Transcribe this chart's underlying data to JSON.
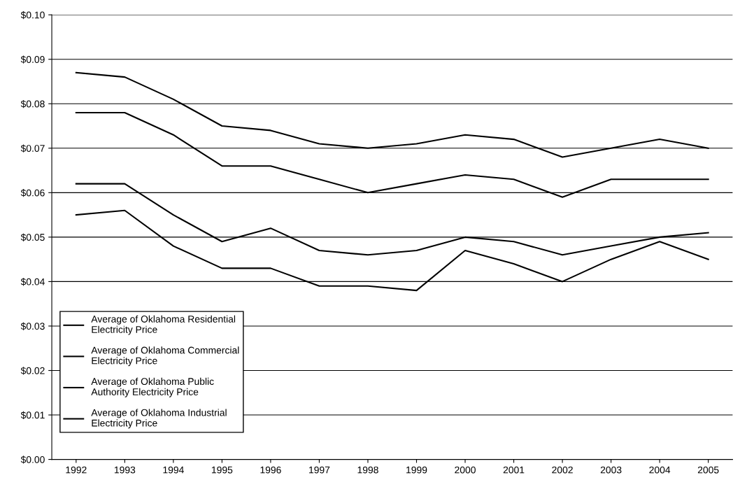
{
  "chart_data": {
    "type": "line",
    "categories": [
      "1992",
      "1993",
      "1994",
      "1995",
      "1996",
      "1997",
      "1998",
      "1999",
      "2000",
      "2001",
      "2002",
      "2003",
      "2004",
      "2005"
    ],
    "series": [
      {
        "name": "Average of Oklahoma Residential\nElectricity Price",
        "color": "#000000",
        "values": [
          0.087,
          0.086,
          0.081,
          0.075,
          0.074,
          0.071,
          0.07,
          0.071,
          0.073,
          0.072,
          0.068,
          0.07,
          0.072,
          0.07
        ]
      },
      {
        "name": "Average of Oklahoma Commercial\nElectricity Price",
        "color": "#000000",
        "values": [
          0.078,
          0.078,
          0.073,
          0.066,
          0.066,
          0.063,
          0.06,
          0.062,
          0.064,
          0.063,
          0.059,
          0.063,
          0.063,
          0.063
        ]
      },
      {
        "name": "Average of Oklahoma Public\nAuthority Electricity Price",
        "color": "#000000",
        "values": [
          0.062,
          0.062,
          0.055,
          0.049,
          0.052,
          0.047,
          0.046,
          0.047,
          0.05,
          0.049,
          0.046,
          0.048,
          0.05,
          0.051
        ]
      },
      {
        "name": "Average of Oklahoma Industrial\nElectricity Price",
        "color": "#000000",
        "values": [
          0.055,
          0.056,
          0.048,
          0.043,
          0.043,
          0.039,
          0.039,
          0.038,
          0.047,
          0.044,
          0.04,
          0.045,
          0.049,
          0.045
        ]
      }
    ],
    "ylim": [
      0,
      0.1
    ],
    "yticks": [
      {
        "value": 0,
        "label": "$0.00"
      },
      {
        "value": 0.01,
        "label": "$0.01"
      },
      {
        "value": 0.02,
        "label": "$0.02"
      },
      {
        "value": 0.03,
        "label": "$0.03"
      },
      {
        "value": 0.04,
        "label": "$0.04"
      },
      {
        "value": 0.05,
        "label": "$0.05"
      },
      {
        "value": 0.06,
        "label": "$0.06"
      },
      {
        "value": 0.07,
        "label": "$0.07"
      },
      {
        "value": 0.08,
        "label": "$0.08"
      },
      {
        "value": 0.09,
        "label": "$0.09"
      },
      {
        "value": 0.1,
        "label": "$0.10"
      }
    ],
    "grid": "y",
    "legend": "bottom left",
    "marker": "none",
    "line_style": "solid"
  }
}
